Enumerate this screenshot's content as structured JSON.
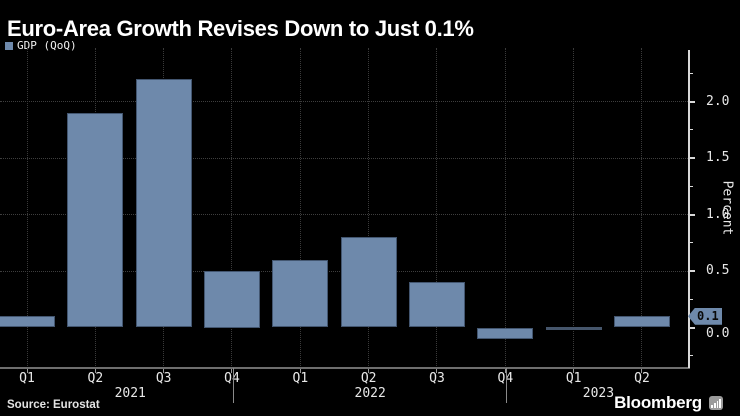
{
  "title": "Euro-Area Growth Revises Down to Just 0.1%",
  "legend": {
    "label": "GDP (QoQ)"
  },
  "footer": {
    "source": "Source: Eurostat",
    "brand": "Bloomberg"
  },
  "colors": {
    "background": "#000000",
    "bar": "#6e89ab",
    "zero_bar": "#46566c",
    "grid": "#3e3e3e",
    "axis_text": "#e8e8e8",
    "badge_text": "#0a0a0a"
  },
  "chart_data": {
    "type": "bar",
    "title": "Euro-Area Growth Revises Down to Just 0.1%",
    "series_name": "GDP (QoQ)",
    "ylabel": "Percent",
    "categories": [
      "Q1 2021",
      "Q2 2021",
      "Q3 2021",
      "Q4 2021",
      "Q1 2022",
      "Q2 2022",
      "Q3 2022",
      "Q4 2022",
      "Q1 2023",
      "Q2 2023"
    ],
    "quarter_labels": [
      "Q1",
      "Q2",
      "Q3",
      "Q4",
      "Q1",
      "Q2",
      "Q3",
      "Q4",
      "Q1",
      "Q2"
    ],
    "year_groups": [
      {
        "label": "2021",
        "count": 4
      },
      {
        "label": "2022",
        "count": 4
      },
      {
        "label": "2023",
        "count": 2
      }
    ],
    "values": [
      0.1,
      1.9,
      2.2,
      0.5,
      0.6,
      0.8,
      0.4,
      -0.1,
      0.0,
      0.1
    ],
    "unit": "percent",
    "y_ticks_major": [
      0.0,
      0.5,
      1.0,
      1.5,
      2.0
    ],
    "y_ticks_minor": [
      -0.25,
      0.25,
      0.75,
      1.25,
      1.75,
      2.25
    ],
    "ylim": [
      -0.36,
      2.47
    ],
    "grid": true,
    "legend_position": "top-left",
    "axis_side": "right",
    "last_value_badge": "0.1",
    "bar_color": "#6e89ab"
  }
}
